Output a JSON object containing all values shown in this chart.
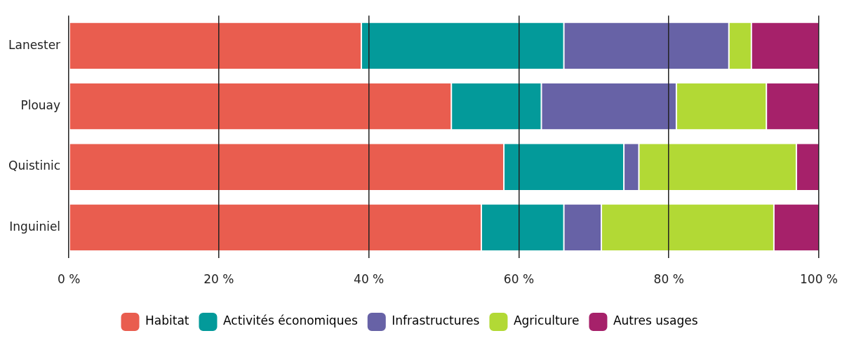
{
  "chart_data": {
    "type": "bar",
    "orientation": "horizontal",
    "stacked": true,
    "categories": [
      "Lanester",
      "Plouay",
      "Quistinic",
      "Inguiniel"
    ],
    "series": [
      {
        "name": "Habitat",
        "color": "#e95d4f",
        "values": [
          39,
          51,
          58,
          55
        ]
      },
      {
        "name": "Activités économiques",
        "color": "#039a9a",
        "values": [
          27,
          12,
          16,
          11
        ]
      },
      {
        "name": "Infrastructures",
        "color": "#6762a6",
        "values": [
          22,
          18,
          2,
          5
        ]
      },
      {
        "name": "Agriculture",
        "color": "#b2d935",
        "values": [
          3,
          12,
          21,
          23
        ]
      },
      {
        "name": "Autres usages",
        "color": "#a6216a",
        "values": [
          9,
          7,
          3,
          6
        ]
      }
    ],
    "xlim": [
      0,
      100
    ],
    "xticks": [
      {
        "value": 0,
        "label": "0 %"
      },
      {
        "value": 20,
        "label": "20 %"
      },
      {
        "value": 40,
        "label": "40 %"
      },
      {
        "value": 60,
        "label": "60 %"
      },
      {
        "value": 80,
        "label": "80 %"
      },
      {
        "value": 100,
        "label": "100 %"
      }
    ],
    "grid": "x",
    "legend": "bottom"
  }
}
